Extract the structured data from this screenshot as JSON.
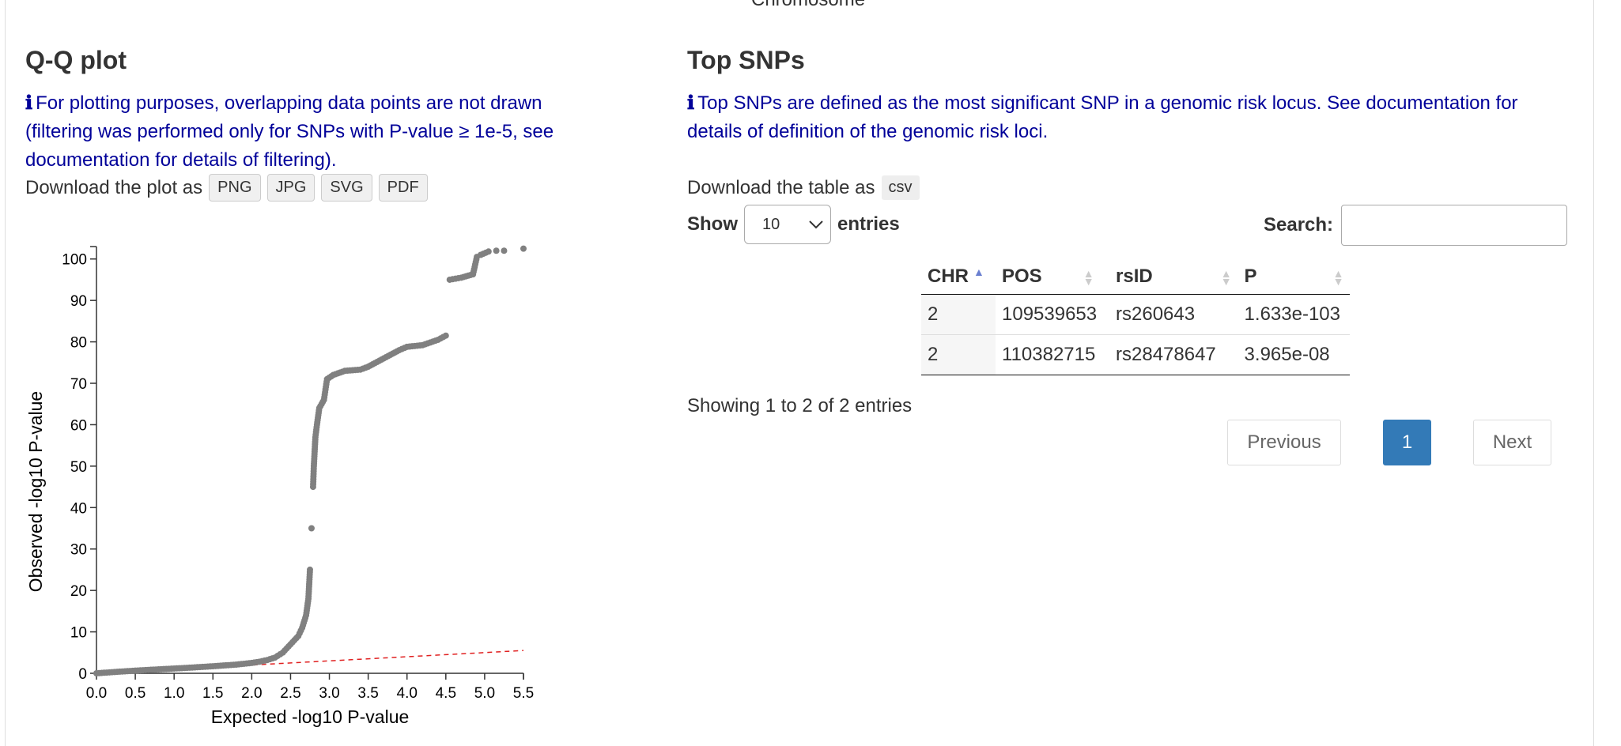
{
  "top_cut_text": "Chromosome",
  "qq": {
    "title": "Q-Q plot",
    "info_line1": "For plotting purposes, overlapping data points are not drawn",
    "info_line2": "(filtering was performed only for SNPs with P-value ≥ 1e-5, see",
    "info_line3": "documentation for details of filtering).",
    "download_label": "Download the plot as",
    "download_formats": [
      "PNG",
      "JPG",
      "SVG",
      "PDF"
    ]
  },
  "top_snps": {
    "title": "Top SNPs",
    "info_line1": "Top SNPs are defined as the most significant SNP in a genomic risk locus. See documentation for",
    "info_line2": "details of definition of the genomic risk loci.",
    "download_label": "Download the table as",
    "download_format": "csv",
    "show_label": "Show",
    "entries_value": "10",
    "entries_label": "entries",
    "search_label": "Search:",
    "search_value": "",
    "columns": [
      "CHR",
      "POS",
      "rsID",
      "P"
    ],
    "rows": [
      [
        "2",
        "109539653",
        "rs260643",
        "1.633e-103"
      ],
      [
        "2",
        "110382715",
        "rs28478647",
        "3.965e-08"
      ]
    ],
    "showing_text": "Showing 1 to 2 of 2 entries",
    "pagination": {
      "previous": "Previous",
      "current": "1",
      "next": "Next"
    }
  },
  "chart_data": {
    "type": "scatter",
    "title": "",
    "xlabel": "Expected -log10 P-value",
    "ylabel": "Observed -log10 P-value",
    "xlim": [
      0,
      5.5
    ],
    "ylim": [
      0,
      103
    ],
    "xticks": [
      "0.0",
      "0.5",
      "1.0",
      "1.5",
      "2.0",
      "2.5",
      "3.0",
      "3.5",
      "4.0",
      "4.5",
      "5.0",
      "5.5"
    ],
    "yticks": [
      "0",
      "10",
      "20",
      "30",
      "40",
      "50",
      "60",
      "70",
      "80",
      "90",
      "100"
    ],
    "point_color": "#808080",
    "reference_line_color": "#e02020",
    "reference_line": [
      [
        0,
        0
      ],
      [
        5.5,
        5.5
      ]
    ],
    "series": [
      {
        "points": [
          [
            0,
            0
          ],
          [
            0.3,
            0.4
          ],
          [
            0.6,
            0.75
          ],
          [
            0.9,
            1.05
          ],
          [
            1.2,
            1.35
          ],
          [
            1.5,
            1.7
          ],
          [
            1.8,
            2.1
          ],
          [
            2.0,
            2.5
          ],
          [
            2.1,
            2.8
          ],
          [
            2.2,
            3.2
          ],
          [
            2.3,
            3.8
          ],
          [
            2.4,
            5
          ],
          [
            2.5,
            7
          ],
          [
            2.6,
            9
          ],
          [
            2.65,
            11
          ],
          [
            2.7,
            14
          ],
          [
            2.73,
            18
          ],
          [
            2.75,
            25
          ],
          [
            2.77,
            35
          ],
          [
            2.79,
            45
          ],
          [
            2.8,
            50
          ],
          [
            2.82,
            57
          ],
          [
            2.84,
            60
          ],
          [
            2.87,
            64
          ],
          [
            2.93,
            66
          ],
          [
            2.97,
            71
          ],
          [
            3.05,
            72
          ],
          [
            3.2,
            73
          ],
          [
            3.4,
            73.3
          ],
          [
            3.5,
            74
          ],
          [
            3.7,
            76
          ],
          [
            3.9,
            78
          ],
          [
            4.0,
            78.8
          ],
          [
            4.2,
            79.2
          ],
          [
            4.4,
            80.5
          ],
          [
            4.5,
            81.5
          ],
          [
            4.55,
            95
          ],
          [
            4.7,
            95.5
          ],
          [
            4.85,
            96.3
          ],
          [
            4.9,
            100.5
          ],
          [
            4.95,
            101
          ],
          [
            5.05,
            101.8
          ],
          [
            5.15,
            102
          ],
          [
            5.25,
            102
          ],
          [
            5.5,
            102.5
          ]
        ]
      }
    ]
  }
}
